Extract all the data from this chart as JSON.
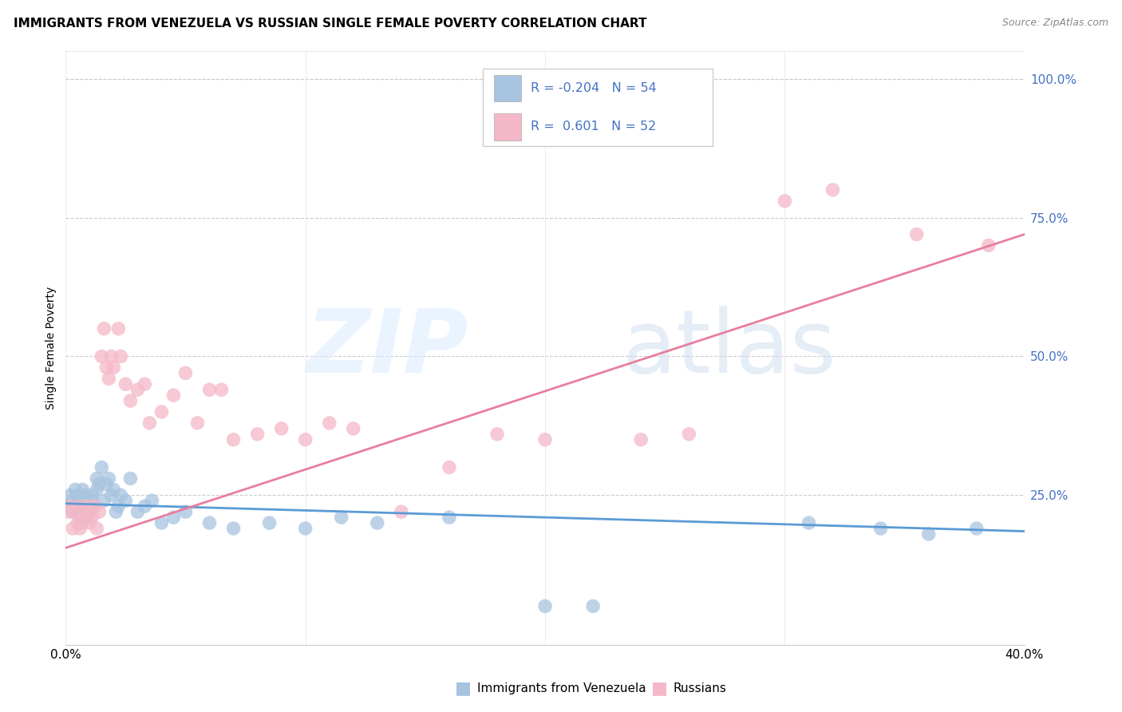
{
  "title": "IMMIGRANTS FROM VENEZUELA VS RUSSIAN SINGLE FEMALE POVERTY CORRELATION CHART",
  "source": "Source: ZipAtlas.com",
  "ylabel": "Single Female Poverty",
  "legend_labels": [
    "Immigrants from Venezuela",
    "Russians"
  ],
  "legend_R": [
    "-0.204",
    "0.601"
  ],
  "legend_N": [
    "54",
    "52"
  ],
  "blue_color": "#a8c4e0",
  "pink_color": "#f4b8c8",
  "blue_line_color": "#5b9bd5",
  "pink_line_color": "#e87ea0",
  "legend_text_color": "#4472c4",
  "xlim": [
    0.0,
    0.4
  ],
  "ylim": [
    -0.02,
    1.05
  ],
  "ytick_vals": [
    0.0,
    0.25,
    0.5,
    0.75,
    1.0
  ],
  "ytick_labels": [
    "",
    "25.0%",
    "50.0%",
    "75.0%",
    "100.0%"
  ],
  "blue_scatter_x": [
    0.001,
    0.002,
    0.003,
    0.003,
    0.004,
    0.004,
    0.005,
    0.005,
    0.006,
    0.006,
    0.007,
    0.007,
    0.008,
    0.008,
    0.009,
    0.009,
    0.01,
    0.01,
    0.011,
    0.011,
    0.012,
    0.013,
    0.013,
    0.014,
    0.015,
    0.016,
    0.017,
    0.018,
    0.019,
    0.02,
    0.021,
    0.022,
    0.023,
    0.025,
    0.027,
    0.03,
    0.033,
    0.036,
    0.04,
    0.045,
    0.05,
    0.06,
    0.07,
    0.085,
    0.1,
    0.115,
    0.13,
    0.16,
    0.2,
    0.22,
    0.31,
    0.34,
    0.36,
    0.38
  ],
  "blue_scatter_y": [
    0.23,
    0.25,
    0.24,
    0.22,
    0.26,
    0.23,
    0.25,
    0.22,
    0.24,
    0.21,
    0.23,
    0.26,
    0.22,
    0.25,
    0.21,
    0.24,
    0.23,
    0.22,
    0.25,
    0.24,
    0.23,
    0.26,
    0.28,
    0.27,
    0.3,
    0.24,
    0.27,
    0.28,
    0.25,
    0.26,
    0.22,
    0.23,
    0.25,
    0.24,
    0.28,
    0.22,
    0.23,
    0.24,
    0.2,
    0.21,
    0.22,
    0.2,
    0.19,
    0.2,
    0.19,
    0.21,
    0.2,
    0.21,
    0.05,
    0.05,
    0.2,
    0.19,
    0.18,
    0.19
  ],
  "pink_scatter_x": [
    0.001,
    0.002,
    0.003,
    0.004,
    0.005,
    0.006,
    0.006,
    0.007,
    0.007,
    0.008,
    0.009,
    0.01,
    0.01,
    0.011,
    0.012,
    0.013,
    0.014,
    0.015,
    0.016,
    0.017,
    0.018,
    0.019,
    0.02,
    0.022,
    0.023,
    0.025,
    0.027,
    0.03,
    0.033,
    0.035,
    0.04,
    0.045,
    0.05,
    0.055,
    0.06,
    0.065,
    0.07,
    0.08,
    0.09,
    0.1,
    0.11,
    0.12,
    0.14,
    0.16,
    0.18,
    0.2,
    0.24,
    0.26,
    0.3,
    0.32,
    0.355,
    0.385
  ],
  "pink_scatter_y": [
    0.22,
    0.23,
    0.19,
    0.22,
    0.2,
    0.23,
    0.19,
    0.21,
    0.2,
    0.22,
    0.23,
    0.2,
    0.22,
    0.21,
    0.23,
    0.19,
    0.22,
    0.5,
    0.55,
    0.48,
    0.46,
    0.5,
    0.48,
    0.55,
    0.5,
    0.45,
    0.42,
    0.44,
    0.45,
    0.38,
    0.4,
    0.43,
    0.47,
    0.38,
    0.44,
    0.44,
    0.35,
    0.36,
    0.37,
    0.35,
    0.38,
    0.37,
    0.22,
    0.3,
    0.36,
    0.35,
    0.35,
    0.36,
    0.78,
    0.8,
    0.72,
    0.7
  ],
  "blue_trend_x": [
    0.0,
    0.4
  ],
  "blue_trend_y": [
    0.235,
    0.185
  ],
  "pink_trend_x": [
    0.0,
    0.4
  ],
  "pink_trend_y": [
    0.155,
    0.72
  ]
}
